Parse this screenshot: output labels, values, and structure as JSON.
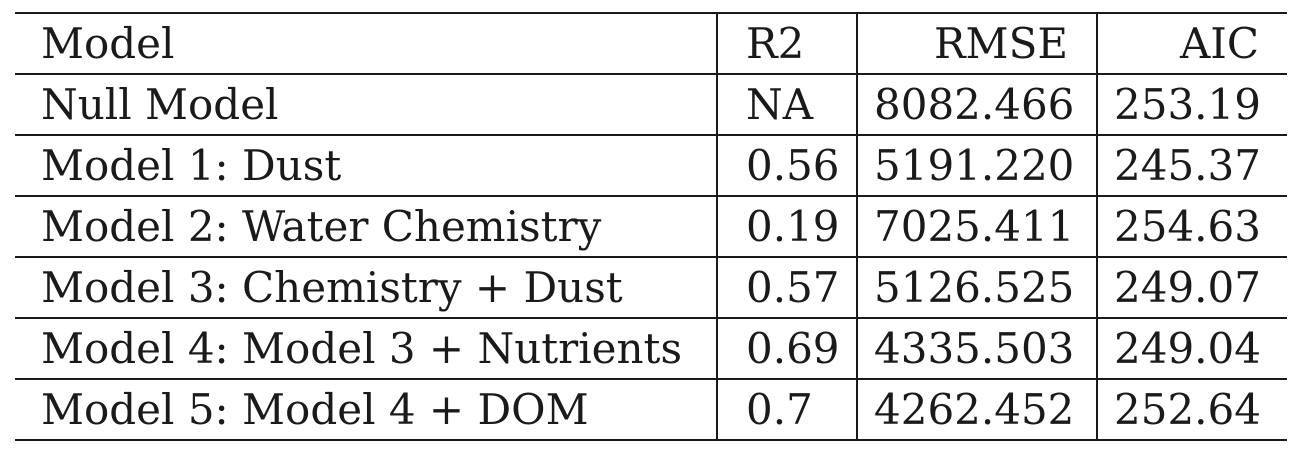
{
  "table": {
    "headers": {
      "model": "Model",
      "r2": "R2",
      "rmse": "RMSE",
      "aic": "AIC"
    },
    "rows": [
      {
        "model": "Null Model",
        "r2": "NA",
        "rmse": "8082.466",
        "aic": "253.19"
      },
      {
        "model": "Model 1: Dust",
        "r2": "0.56",
        "rmse": "5191.220",
        "aic": "245.37"
      },
      {
        "model": "Model 2: Water Chemistry",
        "r2": "0.19",
        "rmse": "7025.411",
        "aic": "254.63"
      },
      {
        "model": "Model 3: Chemistry + Dust",
        "r2": "0.57",
        "rmse": "5126.525",
        "aic": "249.07"
      },
      {
        "model": "Model 4: Model 3 + Nutrients",
        "r2": "0.69",
        "rmse": "4335.503",
        "aic": "249.04"
      },
      {
        "model": "Model 5: Model 4 + DOM",
        "r2": "0.7",
        "rmse": "4262.452",
        "aic": "252.64"
      }
    ]
  }
}
